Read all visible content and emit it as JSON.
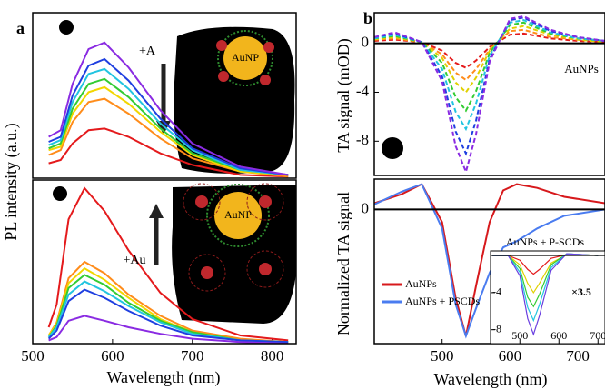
{
  "chart_data": [
    {
      "type": "line",
      "panel_label": "a",
      "ylabel": "PL intensity (a.u.)",
      "xlim": [
        500,
        830
      ],
      "ylim": [
        0,
        1
      ],
      "x": [
        520,
        535,
        550,
        570,
        590,
        620,
        660,
        700,
        760,
        820
      ],
      "series": [
        {
          "color": "#e41a1c",
          "values": [
            0.09,
            0.11,
            0.21,
            0.29,
            0.3,
            0.25,
            0.15,
            0.08,
            0.02,
            0.01
          ]
        },
        {
          "color": "#ff8c1a",
          "values": [
            0.14,
            0.17,
            0.34,
            0.46,
            0.48,
            0.39,
            0.24,
            0.12,
            0.04,
            0.01
          ]
        },
        {
          "color": "#f2d600",
          "values": [
            0.17,
            0.19,
            0.39,
            0.52,
            0.55,
            0.45,
            0.28,
            0.14,
            0.04,
            0.02
          ]
        },
        {
          "color": "#33cc33",
          "values": [
            0.18,
            0.21,
            0.42,
            0.57,
            0.6,
            0.49,
            0.3,
            0.15,
            0.05,
            0.02
          ]
        },
        {
          "color": "#22c4e0",
          "values": [
            0.2,
            0.23,
            0.46,
            0.63,
            0.66,
            0.54,
            0.33,
            0.17,
            0.05,
            0.02
          ]
        },
        {
          "color": "#1f3fe0",
          "values": [
            0.22,
            0.25,
            0.5,
            0.68,
            0.72,
            0.59,
            0.36,
            0.18,
            0.06,
            0.02
          ]
        },
        {
          "color": "#8a2be2",
          "values": [
            0.25,
            0.29,
            0.57,
            0.78,
            0.82,
            0.67,
            0.41,
            0.21,
            0.07,
            0.02
          ]
        }
      ],
      "annotations": [
        "+A",
        "AuNP"
      ]
    },
    {
      "type": "line",
      "xlabel": "Wavelength (nm)",
      "xlim": [
        500,
        830
      ],
      "ylim": [
        0,
        1
      ],
      "xticks": [
        500,
        600,
        700,
        800
      ],
      "x": [
        520,
        530,
        545,
        565,
        590,
        620,
        660,
        700,
        760,
        820
      ],
      "series": [
        {
          "color": "#e41a1c",
          "values": [
            0.1,
            0.24,
            0.76,
            0.95,
            0.81,
            0.57,
            0.31,
            0.15,
            0.05,
            0.02
          ]
        },
        {
          "color": "#ff8c1a",
          "values": [
            0.05,
            0.13,
            0.4,
            0.5,
            0.43,
            0.3,
            0.17,
            0.08,
            0.03,
            0.01
          ]
        },
        {
          "color": "#f2d600",
          "values": [
            0.05,
            0.12,
            0.37,
            0.46,
            0.39,
            0.28,
            0.15,
            0.07,
            0.02,
            0.01
          ]
        },
        {
          "color": "#33cc33",
          "values": [
            0.04,
            0.11,
            0.34,
            0.42,
            0.36,
            0.25,
            0.14,
            0.07,
            0.02,
            0.01
          ]
        },
        {
          "color": "#22c4e0",
          "values": [
            0.04,
            0.1,
            0.3,
            0.38,
            0.32,
            0.23,
            0.13,
            0.06,
            0.02,
            0.01
          ]
        },
        {
          "color": "#1f3fe0",
          "values": [
            0.03,
            0.08,
            0.26,
            0.33,
            0.28,
            0.2,
            0.11,
            0.05,
            0.02,
            0.01
          ]
        },
        {
          "color": "#8a2be2",
          "values": [
            0.02,
            0.04,
            0.14,
            0.17,
            0.14,
            0.1,
            0.06,
            0.03,
            0.01,
            0.0
          ]
        }
      ],
      "annotations": [
        "+Au",
        "AuNP"
      ]
    },
    {
      "type": "line",
      "panel_label": "b",
      "ylabel": "TA signal (mOD)",
      "line_style": "dashed",
      "zero_line": true,
      "xlim": [
        400,
        740
      ],
      "ylim": [
        -10.8,
        2.5
      ],
      "yticks": [
        0,
        -4,
        -8
      ],
      "x": [
        400,
        430,
        470,
        500,
        520,
        535,
        550,
        570,
        600,
        620,
        660,
        700,
        740
      ],
      "series": [
        {
          "color": "#e41a1c",
          "values": [
            0.2,
            0.3,
            0.1,
            -0.6,
            -1.6,
            -2.0,
            -1.4,
            -0.3,
            0.7,
            0.8,
            0.4,
            0.2,
            0.1
          ]
        },
        {
          "color": "#ff8c1a",
          "values": [
            0.3,
            0.4,
            0.1,
            -0.9,
            -2.4,
            -3.0,
            -2.1,
            -0.5,
            1.0,
            1.1,
            0.5,
            0.3,
            0.1
          ]
        },
        {
          "color": "#e0d000",
          "values": [
            0.3,
            0.5,
            0.1,
            -1.2,
            -3.2,
            -4.0,
            -2.8,
            -0.6,
            1.2,
            1.4,
            0.7,
            0.3,
            0.1
          ]
        },
        {
          "color": "#33cc33",
          "values": [
            0.4,
            0.6,
            0.1,
            -1.6,
            -4.4,
            -5.5,
            -3.9,
            -0.8,
            1.5,
            1.7,
            0.8,
            0.4,
            0.2
          ]
        },
        {
          "color": "#22c4e0",
          "values": [
            0.4,
            0.7,
            0.1,
            -2.1,
            -5.6,
            -7.0,
            -4.9,
            -1.0,
            1.7,
            1.9,
            0.9,
            0.4,
            0.2
          ]
        },
        {
          "color": "#1f3fe0",
          "values": [
            0.5,
            0.8,
            0.1,
            -2.7,
            -7.2,
            -9.0,
            -6.3,
            -1.3,
            1.9,
            2.1,
            1.0,
            0.5,
            0.2
          ]
        },
        {
          "color": "#8a2be2",
          "values": [
            0.5,
            0.9,
            0.1,
            -3.1,
            -8.4,
            -10.5,
            -7.4,
            -1.5,
            2.0,
            2.2,
            1.1,
            0.5,
            0.2
          ]
        }
      ],
      "annotations": [
        "AuNPs"
      ]
    },
    {
      "type": "line",
      "ylabel": "Normalized TA signal",
      "xlabel": "Wavelength (nm)",
      "zero_line": true,
      "legend": "left",
      "xlim": [
        400,
        740
      ],
      "ylim": [
        -1.06,
        0.24
      ],
      "yticks": [
        0
      ],
      "xticks": [
        500,
        600,
        700
      ],
      "x": [
        400,
        440,
        470,
        500,
        520,
        535,
        550,
        570,
        590,
        610,
        640,
        680,
        740
      ],
      "series": [
        {
          "name": "AuNPs",
          "color": "#d7191c",
          "values": [
            0.05,
            0.12,
            0.2,
            -0.1,
            -0.7,
            -1.0,
            -0.6,
            -0.1,
            0.15,
            0.2,
            0.17,
            0.1,
            0.05
          ]
        },
        {
          "name": "AuNPs + PSCDs",
          "color": "#4a7cf0",
          "values": [
            0.04,
            0.14,
            0.2,
            -0.15,
            -0.75,
            -1.0,
            -0.78,
            -0.5,
            -0.3,
            -0.25,
            -0.15,
            -0.05,
            0.0
          ]
        }
      ]
    },
    {
      "type": "line",
      "title": "AuNPs + P-SCDs",
      "zero_line": true,
      "xlim": [
        425,
        718
      ],
      "ylim": [
        -9.5,
        0.5
      ],
      "xticks": [
        500,
        600,
        700
      ],
      "yticks": [
        -4,
        -8
      ],
      "x": [
        430,
        470,
        500,
        520,
        535,
        550,
        580,
        620,
        660,
        700
      ],
      "series": [
        {
          "color": "#e41a1c",
          "values": [
            0,
            0,
            -0.5,
            -1.5,
            -2,
            -1.5,
            -0.3,
            0.1,
            0.1,
            0
          ]
        },
        {
          "color": "#e0d000",
          "values": [
            0,
            0,
            -1,
            -3,
            -4,
            -3,
            -0.8,
            0.1,
            0.1,
            0
          ]
        },
        {
          "color": "#33cc33",
          "values": [
            0,
            0,
            -1.4,
            -4.5,
            -5.5,
            -4.2,
            -1,
            0.2,
            0.1,
            0
          ]
        },
        {
          "color": "#22c4e0",
          "values": [
            0,
            0,
            -1.8,
            -5.6,
            -7,
            -5.3,
            -1.3,
            0.2,
            0.1,
            0
          ]
        },
        {
          "color": "#6a3fe0",
          "values": [
            0,
            0,
            -2.2,
            -6.8,
            -8.5,
            -6.5,
            -1.6,
            0.2,
            0.1,
            0
          ]
        }
      ],
      "annotations": [
        "×3.5"
      ]
    }
  ]
}
